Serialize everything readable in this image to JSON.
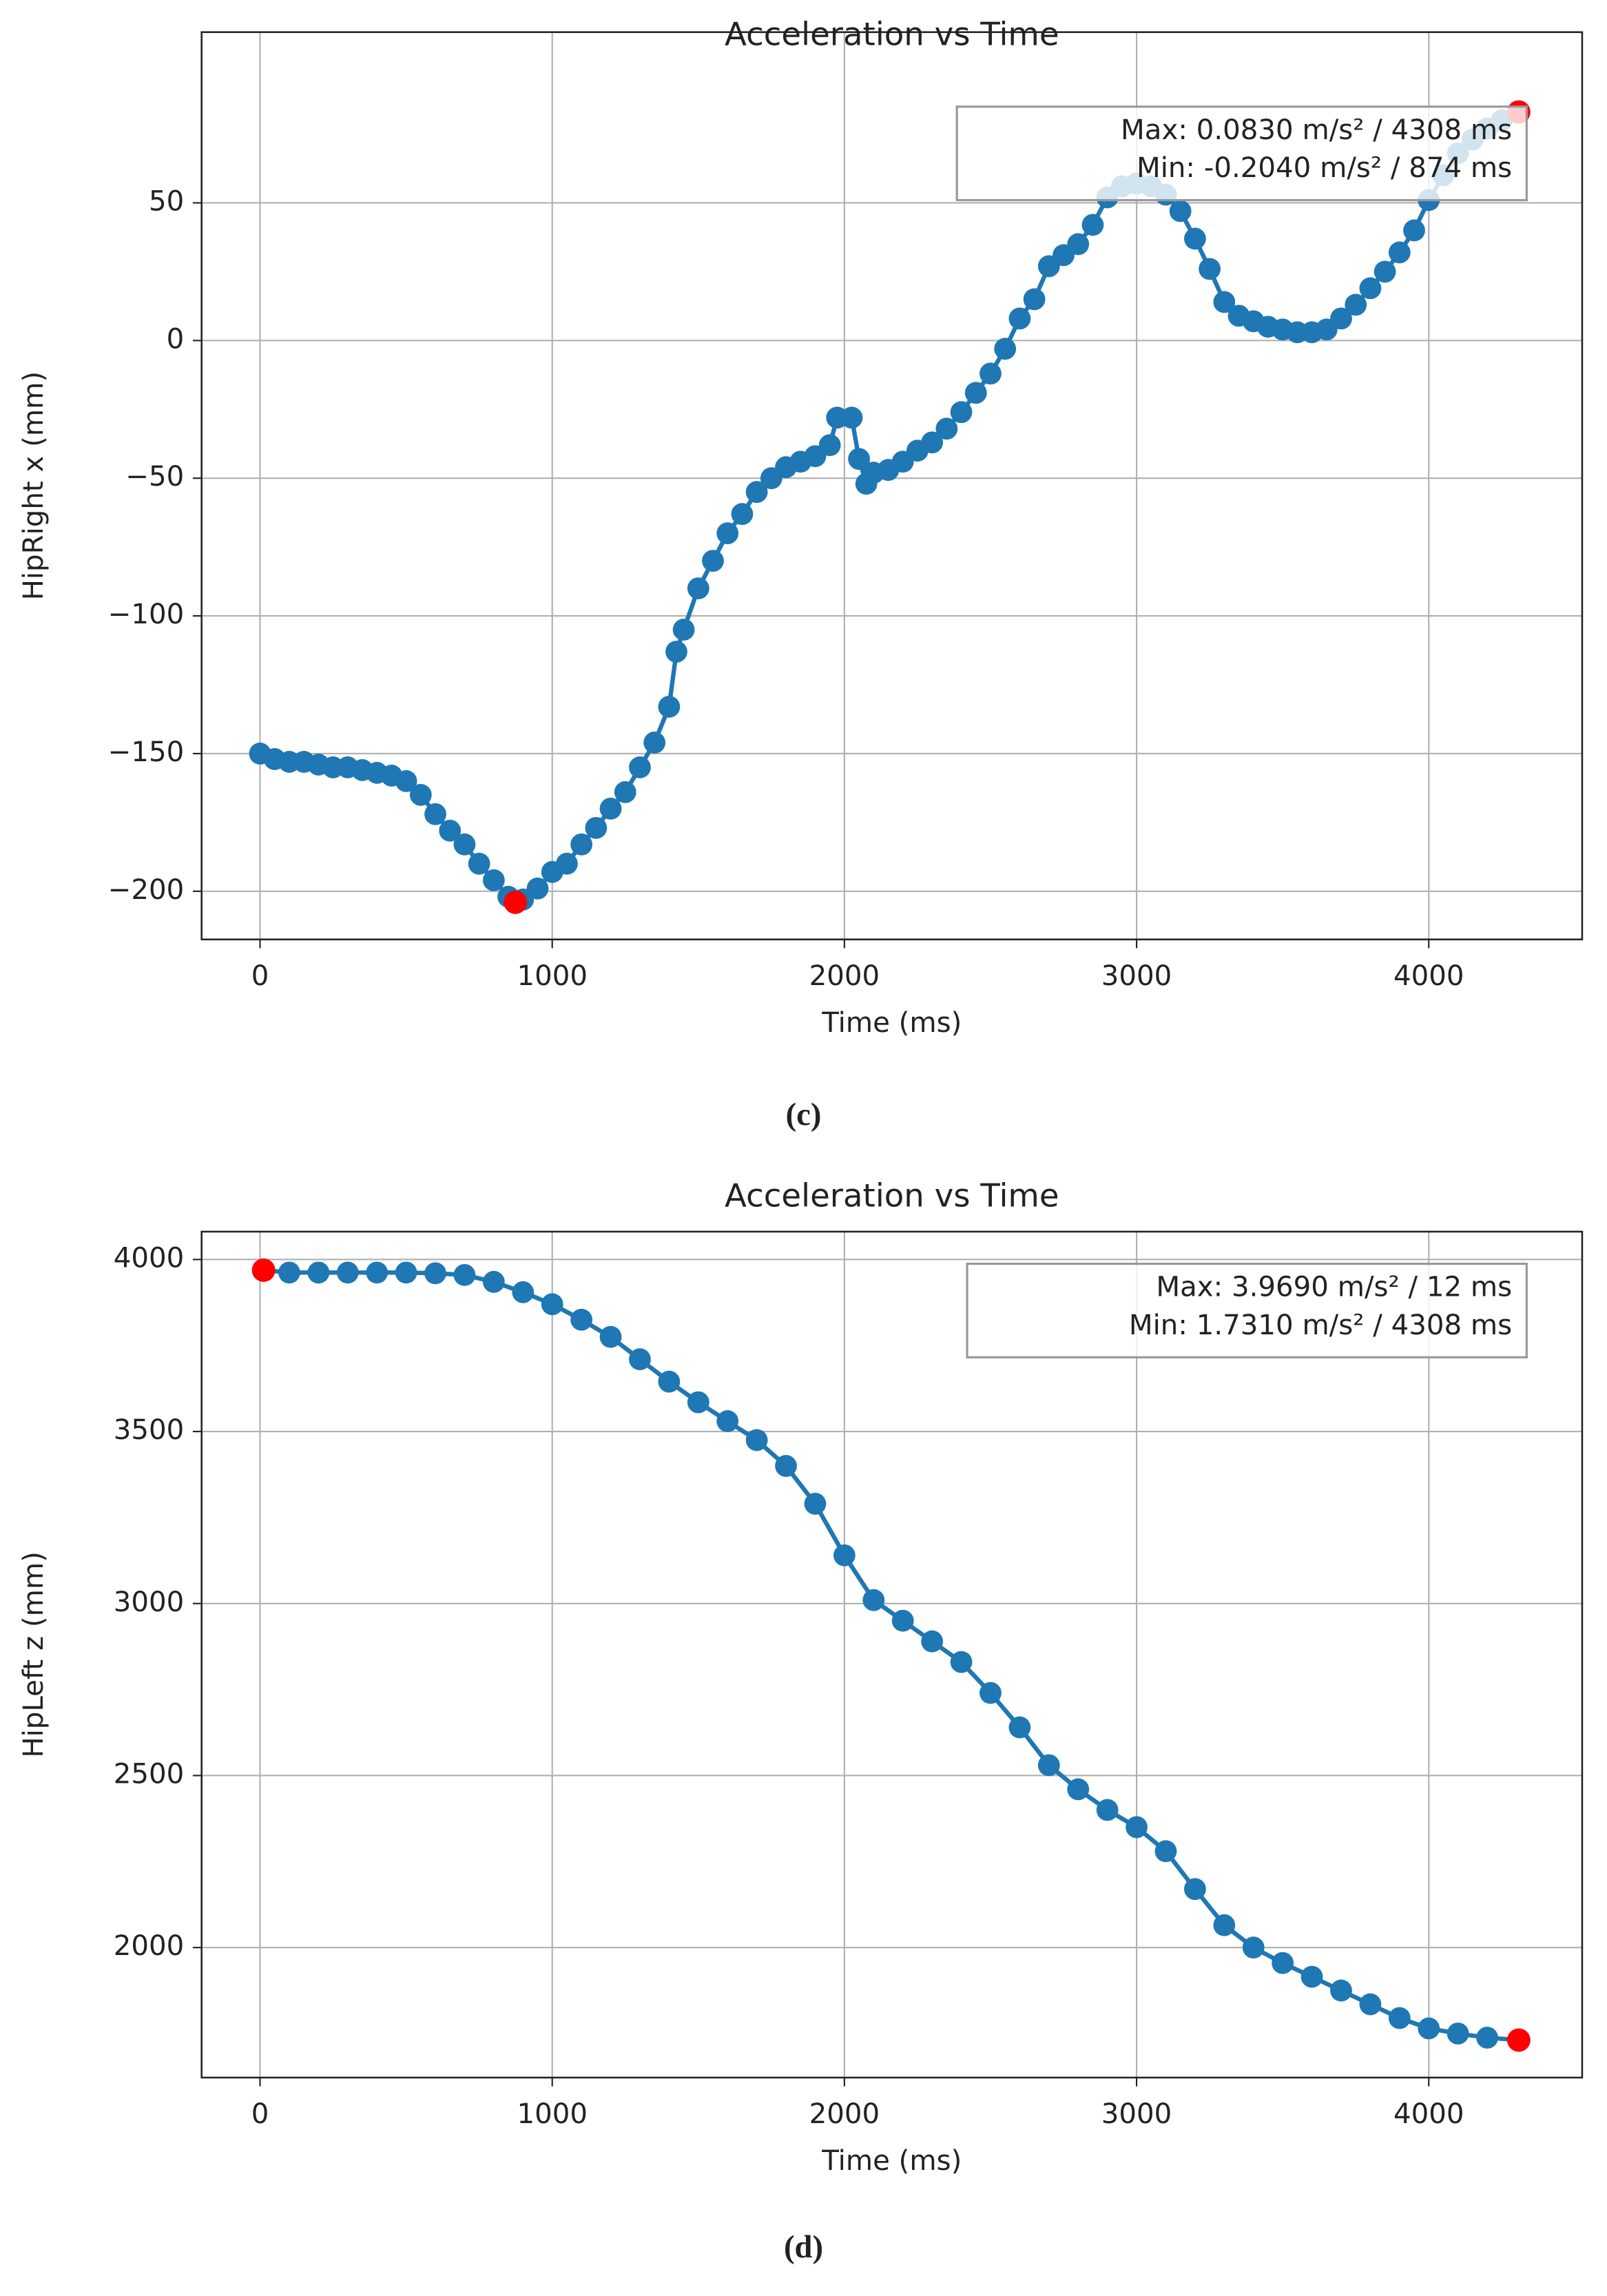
{
  "chart_data": [
    {
      "type": "line",
      "title": "Acceleration vs Time",
      "xlabel": "Time (ms)",
      "ylabel": "HipRight x (mm)",
      "caption": "(c)",
      "color": "#1f77b4",
      "markers": true,
      "grid": true,
      "x": [
        0,
        50,
        100,
        150,
        200,
        250,
        300,
        350,
        400,
        450,
        500,
        550,
        600,
        650,
        700,
        750,
        800,
        850,
        874,
        900,
        950,
        1000,
        1050,
        1100,
        1150,
        1200,
        1250,
        1300,
        1350,
        1400,
        1425,
        1450,
        1500,
        1550,
        1600,
        1650,
        1700,
        1750,
        1800,
        1850,
        1900,
        1950,
        1975,
        2025,
        2050,
        2075,
        2100,
        2150,
        2200,
        2250,
        2300,
        2350,
        2400,
        2450,
        2500,
        2550,
        2600,
        2650,
        2700,
        2750,
        2800,
        2850,
        2900,
        2950,
        3000,
        3050,
        3100,
        3150,
        3200,
        3250,
        3300,
        3350,
        3400,
        3450,
        3500,
        3550,
        3600,
        3650,
        3700,
        3750,
        3800,
        3850,
        3900,
        3950,
        4000,
        4050,
        4100,
        4150,
        4200,
        4250,
        4308
      ],
      "values": [
        -150,
        -152,
        -153,
        -153,
        -154,
        -155,
        -155,
        -156,
        -157,
        -158,
        -160,
        -165,
        -172,
        -178,
        -183,
        -190,
        -196,
        -202,
        -204,
        -203,
        -199,
        -193,
        -190,
        -183,
        -177,
        -170,
        -164,
        -155,
        -146,
        -133,
        -113,
        -105,
        -90,
        -80,
        -70,
        -63,
        -55,
        -50,
        -46,
        -44,
        -42,
        -38,
        -28,
        -28,
        -43,
        -52,
        -48,
        -47,
        -44,
        -40,
        -37,
        -32,
        -26,
        -19,
        -12,
        -3,
        8,
        15,
        27,
        31,
        35,
        42,
        52,
        56,
        57,
        56,
        53,
        47,
        37,
        26,
        14,
        9,
        7,
        5,
        4,
        3,
        3,
        4,
        8,
        13,
        19,
        25,
        32,
        40,
        51,
        60,
        68,
        73,
        77,
        80,
        83
      ],
      "highlights": [
        {
          "x": 874,
          "value": -204,
          "color": "#ff0000"
        },
        {
          "x": 4308,
          "value": 83,
          "color": "#ff0000"
        }
      ],
      "annotation": [
        "Max: 0.0830 m/s² / 4308 ms",
        "Min: -0.2040 m/s² / 874 ms"
      ],
      "xlim": [
        -200,
        4525
      ],
      "ylim": [
        -217.5,
        112
      ],
      "xticks": [
        0,
        1000,
        2000,
        3000,
        4000
      ],
      "yticks": [
        {
          "value": -200,
          "label": "−200"
        },
        {
          "value": -150,
          "label": "−150"
        },
        {
          "value": -100,
          "label": "−100"
        },
        {
          "value": -50,
          "label": "−50"
        },
        0,
        50
      ]
    },
    {
      "type": "line",
      "title": "Acceleration vs Time",
      "xlabel": "Time (ms)",
      "ylabel": "HipLeft z (mm)",
      "caption": "(d)",
      "color": "#1f77b4",
      "markers": true,
      "grid": true,
      "x": [
        12,
        100,
        200,
        300,
        400,
        500,
        600,
        700,
        800,
        900,
        1000,
        1100,
        1200,
        1300,
        1400,
        1500,
        1600,
        1700,
        1800,
        1900,
        2000,
        2100,
        2200,
        2300,
        2400,
        2500,
        2600,
        2700,
        2800,
        2900,
        3000,
        3100,
        3200,
        3300,
        3400,
        3500,
        3600,
        3700,
        3800,
        3900,
        4000,
        4100,
        4200,
        4308
      ],
      "values": [
        3969,
        3962,
        3962,
        3962,
        3962,
        3962,
        3960,
        3955,
        3935,
        3905,
        3870,
        3825,
        3775,
        3710,
        3645,
        3585,
        3530,
        3475,
        3400,
        3290,
        3140,
        3010,
        2950,
        2890,
        2830,
        2740,
        2640,
        2530,
        2460,
        2400,
        2350,
        2280,
        2170,
        2065,
        2000,
        1955,
        1915,
        1875,
        1835,
        1795,
        1765,
        1750,
        1738,
        1731
      ],
      "highlights": [
        {
          "x": 12,
          "value": 3969,
          "color": "#ff0000"
        },
        {
          "x": 4308,
          "value": 1731,
          "color": "#ff0000"
        }
      ],
      "annotation": [
        "Max: 3.9690 m/s² / 12 ms",
        "Min: 1.7310 m/s² / 4308 ms"
      ],
      "xlim": [
        -200,
        4525
      ],
      "ylim": [
        1622,
        4081
      ],
      "xticks": [
        0,
        1000,
        2000,
        3000,
        4000
      ],
      "yticks": [
        2000,
        2500,
        3000,
        3500,
        4000
      ]
    }
  ]
}
